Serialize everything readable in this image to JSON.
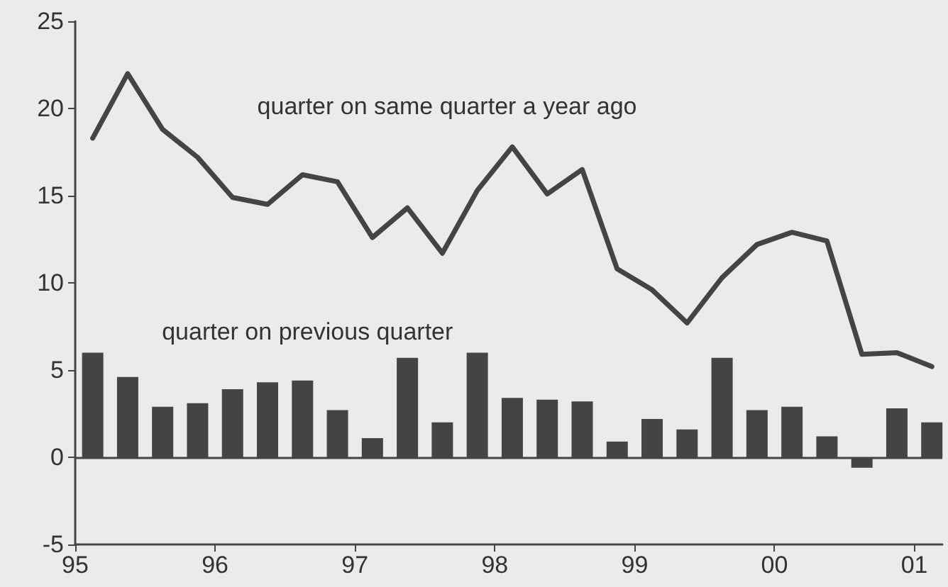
{
  "chart_data": {
    "type": "bar",
    "x": [
      1995.125,
      1995.375,
      1995.625,
      1995.875,
      1996.125,
      1996.375,
      1996.625,
      1996.875,
      1997.125,
      1997.375,
      1997.625,
      1997.875,
      1998.125,
      1998.375,
      1998.625,
      1998.875,
      1999.125,
      1999.375,
      1999.625,
      1999.875,
      2000.125,
      2000.375,
      2000.625,
      2000.875,
      2001.125
    ],
    "series": [
      {
        "name": "quarter on previous quarter",
        "color": "#444444",
        "values": [
          6.0,
          4.6,
          2.9,
          3.1,
          3.9,
          4.3,
          4.4,
          2.7,
          1.1,
          5.7,
          2.0,
          6.0,
          3.4,
          3.3,
          3.2,
          0.9,
          2.2,
          1.6,
          5.7,
          2.7,
          2.9,
          1.2,
          -0.6,
          2.8,
          2.0
        ]
      },
      {
        "name": "quarter on same quarter a year ago",
        "type": "line",
        "color": "#444444",
        "values": [
          18.3,
          22.0,
          18.8,
          17.2,
          14.9,
          14.5,
          16.2,
          15.8,
          12.6,
          14.3,
          11.7,
          15.3,
          17.8,
          15.1,
          16.5,
          10.8,
          9.6,
          7.7,
          10.3,
          12.2,
          12.9,
          12.4,
          5.9,
          6.0,
          5.2
        ]
      }
    ],
    "xlim": [
      1995,
      2001.2
    ],
    "xticks": [
      {
        "value": 1995,
        "label": "95"
      },
      {
        "value": 1996,
        "label": "96"
      },
      {
        "value": 1997,
        "label": "97"
      },
      {
        "value": 1998,
        "label": "98"
      },
      {
        "value": 1999,
        "label": "99"
      },
      {
        "value": 2000,
        "label": "00"
      },
      {
        "value": 2001,
        "label": "01"
      }
    ],
    "ylim": [
      -5,
      25
    ],
    "yticks": [
      -5,
      0,
      5,
      10,
      15,
      20,
      25
    ],
    "ref_lines": [
      {
        "axis": "y",
        "value": 0,
        "color": "#444444"
      }
    ],
    "grid": false,
    "legend": false,
    "marker": "none",
    "line_style": "solid"
  }
}
